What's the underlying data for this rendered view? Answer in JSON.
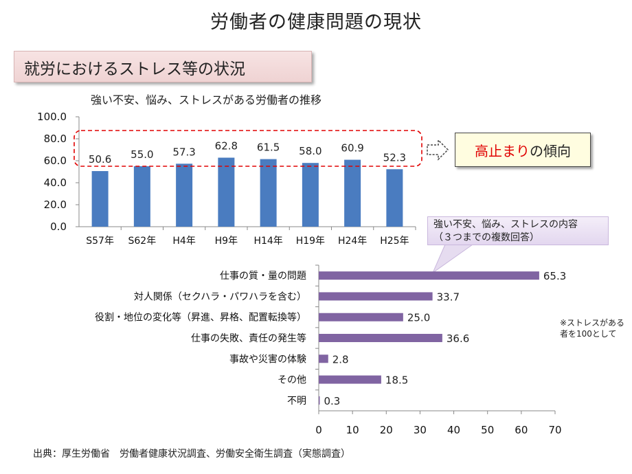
{
  "page_title": "労働者の健康問題の現状",
  "section_label": "就労におけるストレス等の状況",
  "note": {
    "part1": "高止まり",
    "part2": "の傾向",
    "highlight_color": "#e00000"
  },
  "callout": {
    "line1": "強い不安、悩み、ストレスの内容",
    "line2": "（３つまでの複数回答）"
  },
  "side_note": "※ストレスがある者を100として",
  "source": "出典：厚生労働省　労働者健康状況調査、労働安全衛生調査（実態調査）",
  "chart_data": [
    {
      "type": "bar",
      "title": "強い不安、悩み、ストレスがある労働者の推移",
      "categories": [
        "S57年",
        "S62年",
        "H4年",
        "H9年",
        "H14年",
        "H19年",
        "H24年",
        "H25年"
      ],
      "values": [
        50.6,
        55.0,
        57.3,
        62.8,
        61.5,
        58.0,
        60.9,
        52.3
      ],
      "value_labels": [
        "50.6",
        "55.0",
        "57.3",
        "62.8",
        "61.5",
        "58.0",
        "60.9",
        "52.3"
      ],
      "ylim": [
        0,
        100
      ],
      "yticks": [
        "0.0",
        "20.0",
        "40.0",
        "60.0",
        "80.0",
        "100.0"
      ],
      "color": "#4a7cc0",
      "grid": false
    },
    {
      "type": "bar",
      "orientation": "horizontal",
      "categories": [
        "仕事の質・量の問題",
        "対人関係（セクハラ・パワハラを含む）",
        "役割・地位の変化等（昇進、昇格、配置転換等）",
        "仕事の失敗、責任の発生等",
        "事故や災害の体験",
        "その他",
        "不明"
      ],
      "values": [
        65.3,
        33.7,
        25.0,
        36.6,
        2.8,
        18.5,
        0.3
      ],
      "value_labels": [
        "65.3",
        "33.7",
        "25.0",
        "36.6",
        "2.8",
        "18.5",
        "0.3"
      ],
      "xlim": [
        0,
        70
      ],
      "xticks": [
        "0",
        "10",
        "20",
        "30",
        "40",
        "50",
        "60",
        "70"
      ],
      "color": "#8064a2",
      "grid": false
    }
  ]
}
